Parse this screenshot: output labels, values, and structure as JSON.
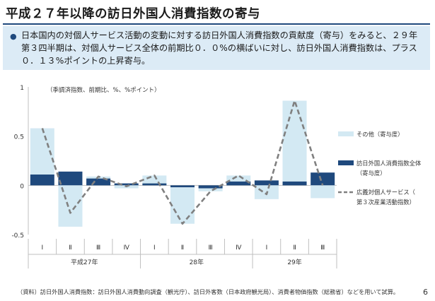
{
  "slide": {
    "title": "平成２７年以降の訪日外国人消費指数の寄与",
    "summary": "日本国内の対個人サービス活動の変動に対する訪日外国人消費指数の貢献度（寄与）をみると、２９年第３四半期は、対個人サービス全体の前期比０．０%の横ばいに対し、訪日外国人消費指数は、プラス０．１３%ポイントの上昇寄与。",
    "source": "（資料）訪日外国人消費指数：訪日外国人消費動向調査（観光庁）、訪日外客数（日本政府観光局）、消費者物価指数（総務省）などを用いて試算。",
    "page_number": "6"
  },
  "chart_data": {
    "type": "bar",
    "unit_note": "（季調済指数、前期比、%、%ポイント）",
    "categories": [
      "Ⅰ",
      "Ⅱ",
      "Ⅲ",
      "Ⅳ",
      "Ⅰ",
      "Ⅱ",
      "Ⅲ",
      "Ⅳ",
      "Ⅰ",
      "Ⅱ",
      "Ⅲ"
    ],
    "year_labels": [
      {
        "label": "平成27年",
        "start": 0,
        "end": 3
      },
      {
        "label": "28年",
        "start": 4,
        "end": 7
      },
      {
        "label": "29年",
        "start": 8,
        "end": 10
      }
    ],
    "ylim": [
      -0.5,
      1
    ],
    "yticks": [
      1,
      0.5,
      0,
      -0.5
    ],
    "ytick_labels": [
      "1",
      "0.5",
      "0",
      "-0.5"
    ],
    "series": [
      {
        "name": "その他（寄与度）",
        "type": "bar",
        "color": "#d3e9f3",
        "values": [
          0.47,
          -0.42,
          0.02,
          -0.03,
          0.08,
          -0.37,
          -0.03,
          0.06,
          -0.14,
          0.82,
          -0.13
        ]
      },
      {
        "name": "訪日外国人消費指数全体（寄与度）",
        "type": "bar",
        "color": "#1f497d",
        "values": [
          0.11,
          0.14,
          0.07,
          0.02,
          0.02,
          -0.02,
          -0.03,
          0.04,
          0.05,
          0.04,
          0.13
        ]
      },
      {
        "name": "広義対個人サービス（第３次産業活動指数）",
        "type": "line",
        "color": "#808080",
        "values": [
          0.58,
          -0.28,
          0.09,
          -0.01,
          0.1,
          -0.39,
          -0.06,
          0.1,
          -0.09,
          0.86,
          0.0
        ]
      }
    ],
    "legend_position": "right"
  }
}
